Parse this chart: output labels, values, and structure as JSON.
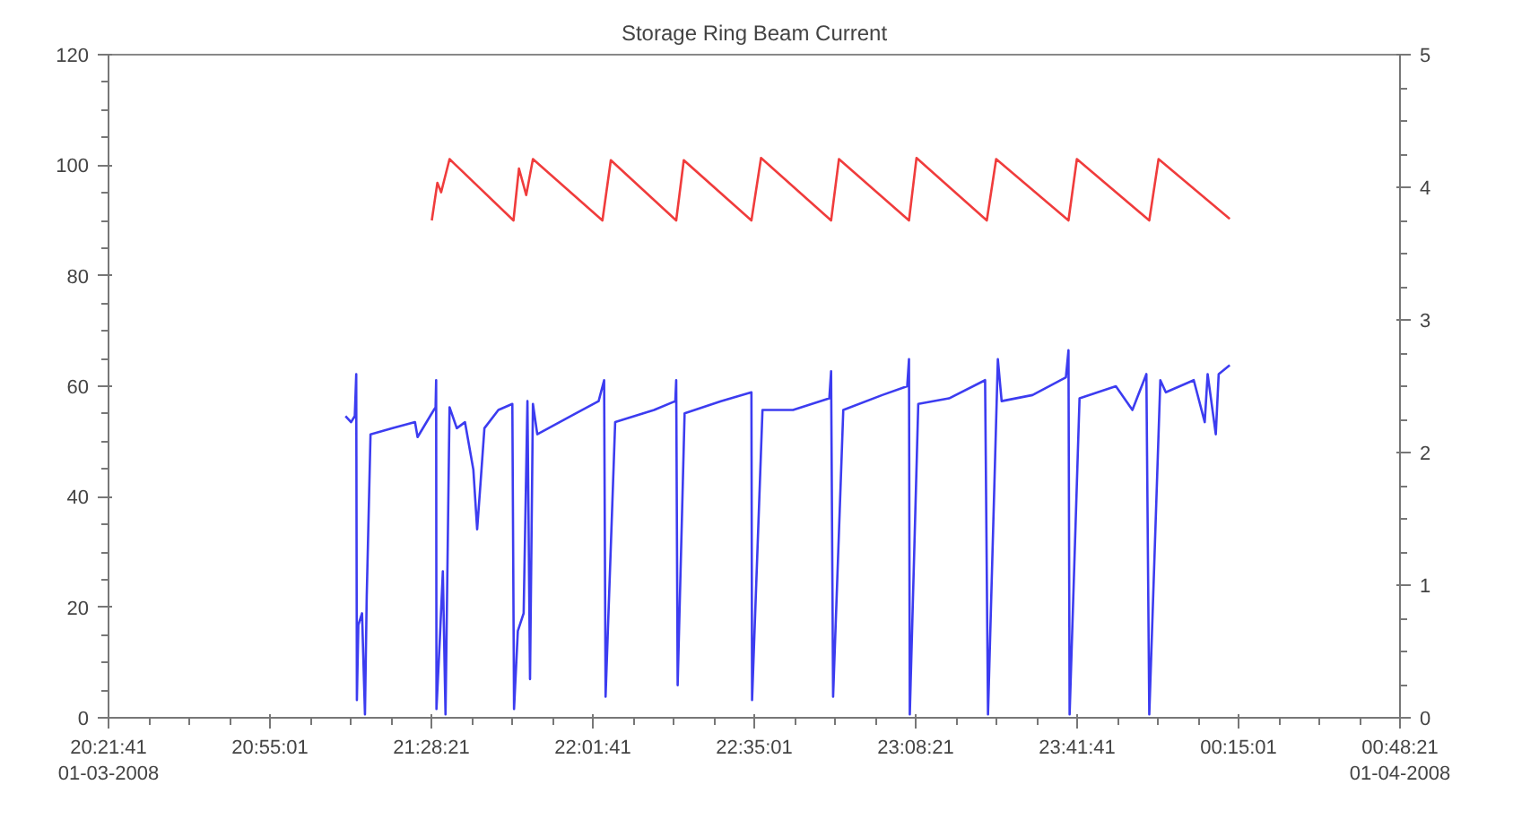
{
  "chart_data": {
    "type": "line",
    "title": "Storage Ring Beam Current",
    "xlim": [
      "2008-01-03T20:21:41",
      "2008-01-04T00:48:21"
    ],
    "xticks": [
      {
        "value": "2008-01-03T20:21:41",
        "label": "20:21:41\n01-03-2008"
      },
      {
        "value": "2008-01-03T20:55:01",
        "label": "20:55:01"
      },
      {
        "value": "2008-01-03T21:28:21",
        "label": "21:28:21"
      },
      {
        "value": "2008-01-03T22:01:41",
        "label": "22:01:41"
      },
      {
        "value": "2008-01-03T22:35:01",
        "label": "22:35:01"
      },
      {
        "value": "2008-01-03T23:08:21",
        "label": "23:08:21"
      },
      {
        "value": "2008-01-03T23:41:41",
        "label": "23:41:41"
      },
      {
        "value": "2008-01-04T00:15:01",
        "label": "00:15:01"
      },
      {
        "value": "2008-01-04T00:48:21",
        "label": "00:48:21\n01-04-2008"
      }
    ],
    "ylim": [
      0,
      120
    ],
    "yticks": [
      0,
      20,
      40,
      60,
      80,
      100,
      120
    ],
    "y2lim": [
      0,
      5
    ],
    "y2ticks": [
      0,
      1,
      2,
      3,
      4,
      5
    ],
    "line_style": "solid",
    "series": [
      {
        "color": "#f03c3c",
        "x": [
          "2008-01-03T21:28:26",
          "2008-01-03T21:29:35",
          "2008-01-03T21:30:22",
          "2008-01-03T21:32:06",
          "2008-01-03T21:45:18",
          "2008-01-03T21:46:26",
          "2008-01-03T21:47:56",
          "2008-01-03T21:49:19",
          "2008-01-03T22:03:40",
          "2008-01-03T22:05:24",
          "2008-01-03T22:18:54",
          "2008-01-03T22:20:28",
          "2008-01-03T22:34:26",
          "2008-01-03T22:36:25",
          "2008-01-03T22:50:53",
          "2008-01-03T22:52:30",
          "2008-01-03T23:06:58",
          "2008-01-03T23:08:31",
          "2008-01-03T23:23:02",
          "2008-01-03T23:24:58",
          "2008-01-03T23:39:54",
          "2008-01-03T23:41:38",
          "2008-01-03T23:56:35",
          "2008-01-03T23:58:30",
          "2008-01-04T00:13:12"
        ],
        "values": [
          90,
          96.8,
          95.1,
          101.1,
          90,
          99.4,
          94.6,
          101.1,
          90,
          100.9,
          90,
          100.9,
          90,
          101.3,
          90,
          101.1,
          90,
          101.3,
          90,
          101.1,
          90,
          101.1,
          90,
          101.1,
          90.3
        ]
      },
      {
        "color": "#3c3cf0",
        "x": [
          "2008-01-03T21:10:37",
          "2008-01-03T21:11:46",
          "2008-01-03T21:12:32",
          "2008-01-03T21:12:50",
          "2008-01-03T21:12:58",
          "2008-01-03T21:13:16",
          "2008-01-03T21:14:02",
          "2008-01-03T21:14:38",
          "2008-01-03T21:15:00",
          "2008-01-03T21:15:47",
          "2008-01-03T21:20:20",
          "2008-01-03T21:24:58",
          "2008-01-03T21:25:30",
          "2008-01-03T21:28:26",
          "2008-01-03T21:29:13",
          "2008-01-03T21:29:20",
          "2008-01-03T21:29:24",
          "2008-01-03T21:30:07",
          "2008-01-03T21:30:43",
          "2008-01-03T21:31:16",
          "2008-01-03T21:32:06",
          "2008-01-03T21:33:36",
          "2008-01-03T21:35:17",
          "2008-01-03T21:37:01",
          "2008-01-03T21:37:48",
          "2008-01-03T21:38:31",
          "2008-01-03T21:39:18",
          "2008-01-03T21:42:11",
          "2008-01-03T21:45:04",
          "2008-01-03T21:45:25",
          "2008-01-03T21:46:12",
          "2008-01-03T21:47:24",
          "2008-01-03T21:48:11",
          "2008-01-03T21:48:43",
          "2008-01-03T21:49:19",
          "2008-01-03T21:50:13",
          "2008-01-03T21:57:07",
          "2008-01-03T22:02:53",
          "2008-01-03T22:04:01",
          "2008-01-03T22:04:19",
          "2008-01-03T22:06:18",
          "2008-01-03T22:14:20",
          "2008-01-03T22:18:43",
          "2008-01-03T22:18:54",
          "2008-01-03T22:19:12",
          "2008-01-03T22:20:38",
          "2008-01-03T22:28:08",
          "2008-01-03T22:34:26",
          "2008-01-03T22:34:34",
          "2008-01-03T22:36:43",
          "2008-01-03T22:43:01",
          "2008-01-03T22:50:31",
          "2008-01-03T22:50:53",
          "2008-01-03T22:51:18",
          "2008-01-03T22:53:24",
          "2008-01-03T23:01:26",
          "2008-01-03T23:06:36",
          "2008-01-03T23:06:58",
          "2008-01-03T23:07:08",
          "2008-01-03T23:08:53",
          "2008-01-03T23:15:14",
          "2008-01-03T23:22:41",
          "2008-01-03T23:23:17",
          "2008-01-03T23:25:19",
          "2008-01-03T23:26:06",
          "2008-01-03T23:32:28",
          "2008-01-03T23:39:22",
          "2008-01-03T23:39:54",
          "2008-01-03T23:40:08",
          "2008-01-03T23:42:11",
          "2008-01-03T23:49:41",
          "2008-01-03T23:53:06",
          "2008-01-03T23:55:59",
          "2008-01-03T23:56:35",
          "2008-01-03T23:58:52",
          "2008-01-04T00:00:00",
          "2008-01-04T00:05:46",
          "2008-01-04T00:08:02",
          "2008-01-04T00:08:38",
          "2008-01-04T00:10:19",
          "2008-01-04T00:10:55",
          "2008-01-04T00:13:12"
        ],
        "values": [
          54.6,
          53.5,
          54.6,
          62.2,
          3.2,
          16.8,
          18.9,
          0.6,
          22,
          51.3,
          52.4,
          53.5,
          50.8,
          55.1,
          56.2,
          61.1,
          1.6,
          14.6,
          26.5,
          0.6,
          56.2,
          52.4,
          53.5,
          44.9,
          34.1,
          42.7,
          52.4,
          55.7,
          56.8,
          1.6,
          15.7,
          18.9,
          57.3,
          7,
          56.8,
          51.3,
          54.6,
          57.3,
          61.1,
          3.8,
          53.5,
          55.7,
          57.3,
          61.1,
          5.9,
          55.1,
          57.3,
          58.9,
          3.2,
          55.7,
          55.7,
          57.8,
          62.7,
          3.8,
          55.7,
          58.4,
          60,
          64.9,
          0.6,
          56.8,
          57.8,
          61.1,
          0.6,
          64.9,
          57.3,
          58.4,
          61.6,
          66.5,
          0.6,
          57.8,
          60,
          55.7,
          62.2,
          0.6,
          61.1,
          58.9,
          61.1,
          53.5,
          62.2,
          51.3,
          62.2,
          63.8
        ]
      }
    ]
  }
}
